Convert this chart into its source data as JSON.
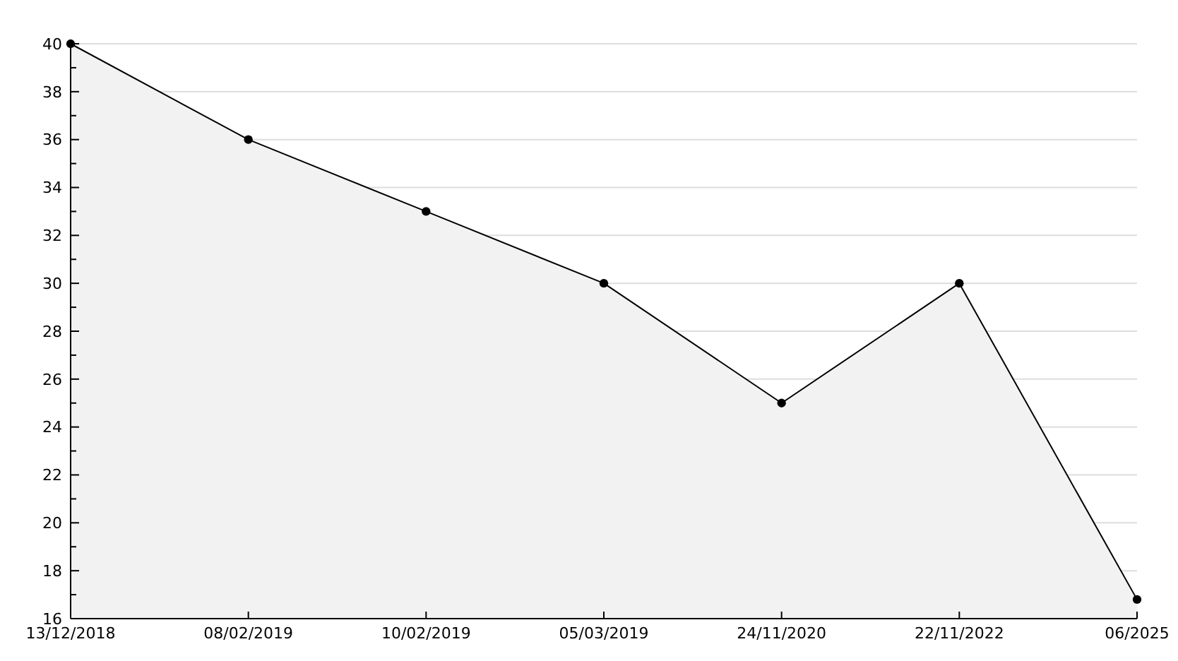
{
  "chart_data": {
    "type": "area",
    "categories": [
      "13/12/2018",
      "08/02/2019",
      "10/02/2019",
      "05/03/2019",
      "24/11/2020",
      "22/11/2022",
      "06/2025"
    ],
    "series": [
      {
        "color": "#000000",
        "values": [
          40,
          36,
          33,
          30,
          25,
          30,
          16.8
        ]
      }
    ],
    "ylim": [
      16,
      40
    ],
    "yticks": [
      16,
      {
        "value": 17,
        "label": null
      },
      18,
      {
        "value": 19,
        "label": null
      },
      20,
      {
        "value": 21,
        "label": null
      },
      22,
      {
        "value": 23,
        "label": null
      },
      24,
      {
        "value": 25,
        "label": null
      },
      26,
      {
        "value": 27,
        "label": null
      },
      28,
      {
        "value": 29,
        "label": null
      },
      30,
      {
        "value": 31,
        "label": null
      },
      32,
      {
        "value": 33,
        "label": null
      },
      34,
      {
        "value": 35,
        "label": null
      },
      36,
      {
        "value": 37,
        "label": null
      },
      38,
      {
        "value": 39,
        "label": null
      },
      40
    ],
    "grid": "y",
    "marker": "circle",
    "line_style": "solid"
  }
}
